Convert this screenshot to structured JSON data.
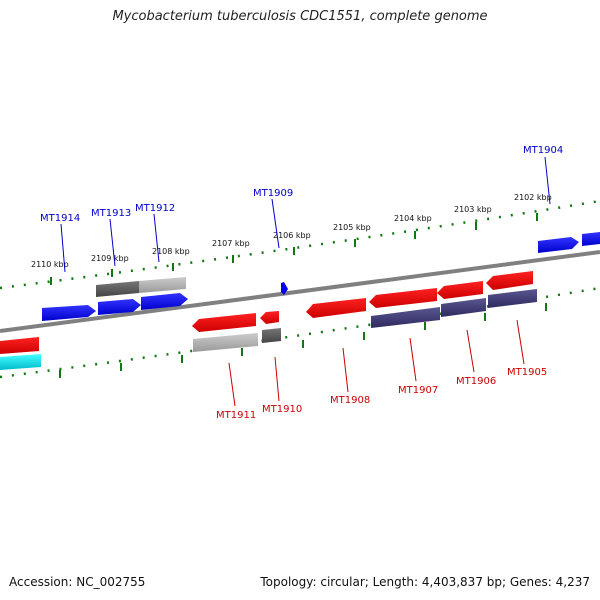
{
  "title": "Mycobacterium tuberculosis CDC1551, complete genome",
  "accession_text": "Accession: NC_002755",
  "summary_text": "Topology: circular; Length: 4,403,837 bp; Genes: 4,237",
  "colors": {
    "forward_gene": "#0000ee",
    "reverse_gene": "#ee0000",
    "feature_gray": "#aaaaaa",
    "feature_dark": "#666666",
    "feature_navy": "#3d3a7a",
    "feature_cyan": "#00e5ee",
    "ticks": "#117711",
    "backbone": "#777777",
    "label_forward": "#0000cc",
    "label_reverse": "#cc0000"
  },
  "kbp_labels": [
    "2110 kbp",
    "2109 kbp",
    "2108 kbp",
    "2107 kbp",
    "2106 kbp",
    "2105 kbp",
    "2104 kbp",
    "2103 kbp",
    "2102 kbp"
  ],
  "forward_labels": [
    "MT1914",
    "MT1913",
    "MT1912",
    "MT1909",
    "MT1904"
  ],
  "reverse_labels": [
    "MT1911",
    "MT1910",
    "MT1908",
    "MT1907",
    "MT1906",
    "MT1905"
  ]
}
